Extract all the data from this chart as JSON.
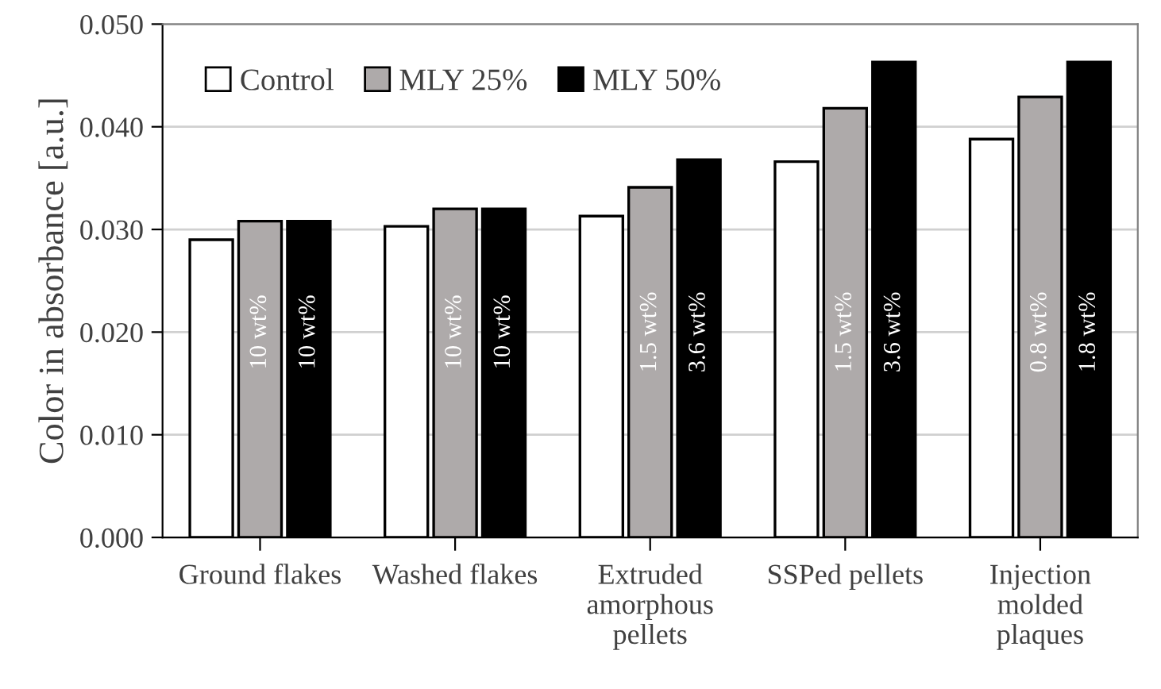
{
  "chart_data": {
    "type": "bar",
    "ylabel": "Color in absorbance [a.u.]",
    "categories": [
      "Ground flakes",
      "Washed flakes",
      "Extruded\namorphous\npellets",
      "SSPed pellets",
      "Injection\nmolded\nplaques"
    ],
    "series": [
      {
        "name": "Control",
        "color": "#ffffff",
        "values": [
          0.029,
          0.0303,
          0.0313,
          0.0366,
          0.0388
        ]
      },
      {
        "name": "MLY 25%",
        "color": "#aeaaaa",
        "values": [
          0.0308,
          0.032,
          0.0341,
          0.0418,
          0.0429
        ]
      },
      {
        "name": "MLY 50%",
        "color": "#000000",
        "values": [
          0.0308,
          0.032,
          0.0368,
          0.0463,
          0.0463
        ]
      }
    ],
    "annotations": [
      "10 wt%",
      "10 wt%",
      "10 wt%",
      "10 wt%",
      "1.5 wt%",
      "3.6 wt%",
      "1.5 wt%",
      "3.6 wt%",
      "0.8 wt%",
      "1.8 wt%"
    ],
    "ylim": [
      0,
      0.05
    ],
    "yticks": [
      {
        "value": 0,
        "label": "0.000"
      },
      {
        "value": 0.01,
        "label": "0.010"
      },
      {
        "value": 0.02,
        "label": "0.020"
      },
      {
        "value": 0.03,
        "label": "0.030"
      },
      {
        "value": 0.04,
        "label": "0.040"
      },
      {
        "value": 0.05,
        "label": "0.050"
      }
    ],
    "grid": "y",
    "legend": "top left"
  }
}
